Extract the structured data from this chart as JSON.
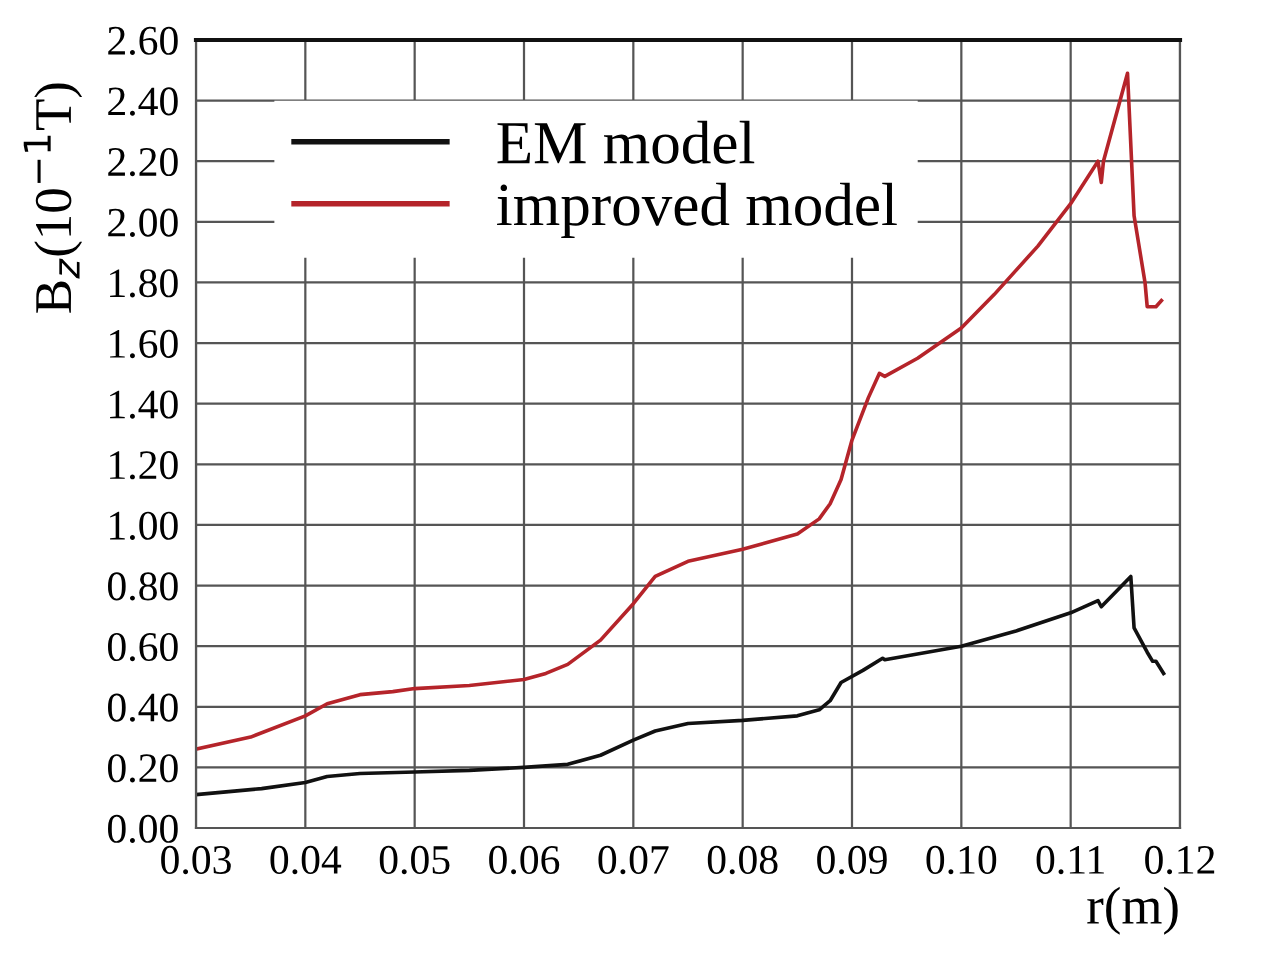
{
  "chart_data": {
    "type": "line",
    "xlabel": "r(m)",
    "ylabel": "B$_{z}$(10$^{−1}$T)",
    "xlim": [
      0.03,
      0.12
    ],
    "xticks": [
      {
        "value": 0.03,
        "label": "0.03"
      },
      {
        "value": 0.04,
        "label": "0.04"
      },
      {
        "value": 0.05,
        "label": "0.05"
      },
      {
        "value": 0.06,
        "label": "0.06"
      },
      {
        "value": 0.07,
        "label": "0.07"
      },
      {
        "value": 0.08,
        "label": "0.08"
      },
      {
        "value": 0.09,
        "label": "0.09"
      },
      {
        "value": 0.1,
        "label": "0.10"
      },
      {
        "value": 0.11,
        "label": "0.11"
      },
      {
        "value": 0.12,
        "label": "0.12"
      }
    ],
    "ylim": [
      0,
      2.6
    ],
    "yticks": [
      {
        "value": 0,
        "label": "0.00"
      },
      {
        "value": 0.2,
        "label": "0.20"
      },
      {
        "value": 0.4,
        "label": "0.40"
      },
      {
        "value": 0.6,
        "label": "0.60"
      },
      {
        "value": 0.8,
        "label": "0.80"
      },
      {
        "value": 1.0,
        "label": "1.00"
      },
      {
        "value": 1.2,
        "label": "1.20"
      },
      {
        "value": 1.4,
        "label": "1.40"
      },
      {
        "value": 1.6,
        "label": "1.60"
      },
      {
        "value": 1.8,
        "label": "1.80"
      },
      {
        "value": 2.0,
        "label": "2.00"
      },
      {
        "value": 2.2,
        "label": "2.20"
      },
      {
        "value": 2.4,
        "label": "2.40"
      },
      {
        "value": 2.6,
        "label": "2.60"
      }
    ],
    "grid": true,
    "legend": "top left",
    "marker": "none",
    "line_style": "solid",
    "series": [
      {
        "name": "EM model",
        "color": "#111111",
        "x": [
          0.03,
          0.033,
          0.036,
          0.04,
          0.042,
          0.045,
          0.05,
          0.055,
          0.06,
          0.064,
          0.067,
          0.07,
          0.072,
          0.075,
          0.08,
          0.085,
          0.087,
          0.088,
          0.089,
          0.091,
          0.0928,
          0.093,
          0.1,
          0.105,
          0.11,
          0.1125,
          0.1128,
          0.1155,
          0.1158,
          0.117,
          0.1175,
          0.1178,
          0.1185
        ],
        "values": [
          0.11,
          0.12,
          0.13,
          0.15,
          0.17,
          0.18,
          0.185,
          0.19,
          0.2,
          0.21,
          0.24,
          0.29,
          0.32,
          0.345,
          0.355,
          0.37,
          0.39,
          0.42,
          0.48,
          0.52,
          0.56,
          0.555,
          0.6,
          0.65,
          0.71,
          0.75,
          0.73,
          0.83,
          0.66,
          0.58,
          0.55,
          0.55,
          0.51
        ]
      },
      {
        "name": "improved model",
        "color": "#b5242a",
        "x": [
          0.03,
          0.035,
          0.04,
          0.042,
          0.045,
          0.048,
          0.05,
          0.055,
          0.06,
          0.062,
          0.064,
          0.067,
          0.07,
          0.072,
          0.075,
          0.08,
          0.085,
          0.087,
          0.088,
          0.089,
          0.09,
          0.0915,
          0.0925,
          0.093,
          0.096,
          0.1,
          0.103,
          0.107,
          0.11,
          0.1125,
          0.1128,
          0.113,
          0.1152,
          0.1158,
          0.1168,
          0.117,
          0.1178,
          0.1183
        ],
        "values": [
          0.26,
          0.3,
          0.37,
          0.41,
          0.44,
          0.45,
          0.46,
          0.47,
          0.49,
          0.51,
          0.54,
          0.62,
          0.74,
          0.83,
          0.88,
          0.92,
          0.97,
          1.02,
          1.07,
          1.15,
          1.28,
          1.42,
          1.5,
          1.49,
          1.55,
          1.65,
          1.76,
          1.92,
          2.06,
          2.2,
          2.13,
          2.2,
          2.49,
          2.02,
          1.8,
          1.72,
          1.72,
          1.74
        ]
      }
    ]
  }
}
